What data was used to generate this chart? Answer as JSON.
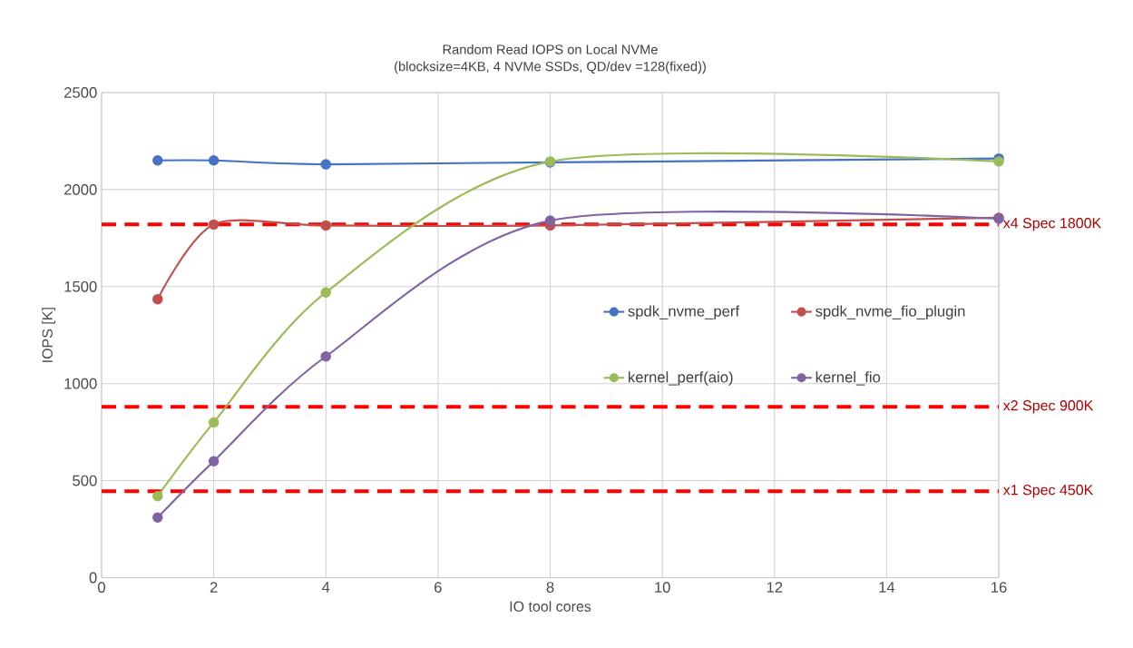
{
  "chart_data": {
    "type": "line",
    "title": "Random Read IOPS on Local NVMe",
    "subtitle": "(blocksize=4KB, 4 NVMe  SSDs, QD/dev =128(fixed))",
    "xlabel": "IO tool cores",
    "ylabel": "IOPS [K]",
    "x": [
      1,
      2,
      4,
      8,
      16
    ],
    "series": [
      {
        "name": "spdk_nvme_perf",
        "color": "#4472c4",
        "values": [
          2150,
          2150,
          2130,
          2140,
          2160
        ]
      },
      {
        "name": "spdk_nvme_fio_plugin",
        "color": "#c0504d",
        "values": [
          1435,
          1820,
          1815,
          1815,
          1855
        ]
      },
      {
        "name": "kernel_perf(aio)",
        "color": "#9bbb59",
        "values": [
          420,
          800,
          1470,
          2145,
          2145
        ]
      },
      {
        "name": "kernel_fio",
        "color": "#8064a2",
        "values": [
          310,
          600,
          1140,
          1840,
          1850
        ]
      }
    ],
    "xlim": [
      0,
      16
    ],
    "xticks": [
      0,
      2,
      4,
      6,
      8,
      10,
      12,
      14,
      16
    ],
    "ylim": [
      0,
      2500
    ],
    "yticks": [
      0,
      500,
      1000,
      1500,
      2000,
      2500
    ],
    "ref_lines": [
      {
        "axis": "y",
        "value": 1820,
        "label": "x4 Spec 1800K",
        "color": "#ff0000",
        "line_style": "dashed"
      },
      {
        "axis": "y",
        "value": 880,
        "label": "x2 Spec 900K",
        "color": "#ff0000",
        "line_style": "dashed"
      },
      {
        "axis": "y",
        "value": 445,
        "label": "x1 Spec 450K",
        "color": "#ff0000",
        "line_style": "dashed"
      }
    ],
    "grid": true,
    "legend": "right",
    "marker": "circle",
    "line_style": "solid"
  }
}
